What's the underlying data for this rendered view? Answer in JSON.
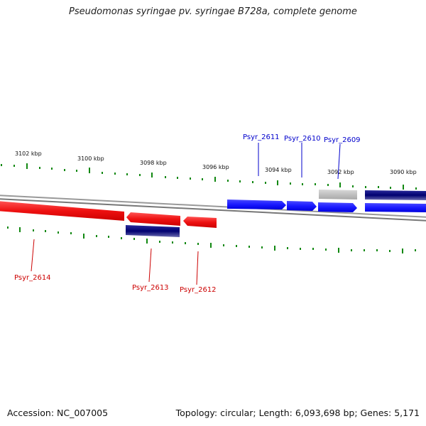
{
  "title": "Pseudomonas syringae pv. syringae B728a, complete genome",
  "footer": {
    "accession": "Accession: NC_007005",
    "summary": "Topology: circular; Length: 6,093,698 bp; Genes: 5,171"
  },
  "kbp_labels": [
    "3102 kbp",
    "3100 kbp",
    "3098 kbp",
    "3096 kbp",
    "3094 kbp",
    "3092 kbp",
    "3090 kbp"
  ],
  "gene_labels": {
    "psyr_2611": "Psyr_2611",
    "psyr_2610": "Psyr_2610",
    "psyr_2609": "Psyr_2609",
    "psyr_2614": "Psyr_2614",
    "psyr_2613": "Psyr_2613",
    "psyr_2612": "Psyr_2612"
  },
  "colors": {
    "forward_gene": "#1a1aff",
    "reverse_gene": "#ee1111",
    "dark_feature": "#000070",
    "grey_feature": "#b0b0b0",
    "backbone": "#888888",
    "tick": "#118811",
    "label_blue": "#0000cc",
    "label_red": "#cc0000"
  }
}
